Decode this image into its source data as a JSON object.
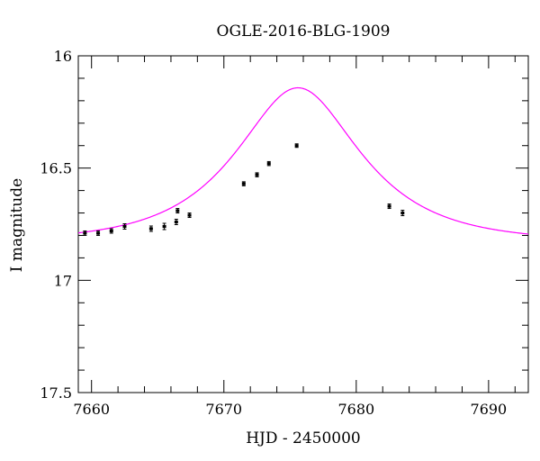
{
  "chart_data": {
    "type": "scatter",
    "title": "OGLE-2016-BLG-1909",
    "xlabel": "HJD - 2450000",
    "ylabel": "I magnitude",
    "xlim": [
      7659,
      7693
    ],
    "ylim": [
      16,
      17.5
    ],
    "y_inverted": true,
    "grid": false,
    "x_ticks": [
      7660,
      7670,
      7680,
      7690
    ],
    "x_tick_labels": [
      "7660",
      "7670",
      "7680",
      "7690"
    ],
    "y_ticks": [
      16,
      16.5,
      17,
      17.5
    ],
    "y_tick_labels": [
      "16",
      "16.5",
      "17",
      "17.5"
    ],
    "x_minor_step": 2,
    "y_minor_step": 0.1,
    "series": [
      {
        "kind": "points",
        "color": "#000000",
        "x": [
          7659.5,
          7660.5,
          7661.5,
          7662.5,
          7664.5,
          7665.5,
          7666.4,
          7666.5,
          7667.4,
          7671.5,
          7672.5,
          7673.4,
          7675.5,
          7682.5,
          7683.5
        ],
        "y": [
          16.79,
          16.79,
          16.78,
          16.76,
          16.77,
          16.76,
          16.74,
          16.69,
          16.71,
          16.57,
          16.53,
          16.48,
          16.4,
          16.67,
          16.7
        ],
        "yerr": [
          0.006,
          0.006,
          0.006,
          0.008,
          0.008,
          0.01,
          0.008,
          0.006,
          0.006,
          0.005,
          0.005,
          0.005,
          0.004,
          0.006,
          0.008
        ]
      },
      {
        "kind": "model",
        "color": "#ff00ff",
        "t0": 7675.6,
        "u0": 0.6,
        "tE": 7.4,
        "baseline": 16.83
      }
    ]
  }
}
